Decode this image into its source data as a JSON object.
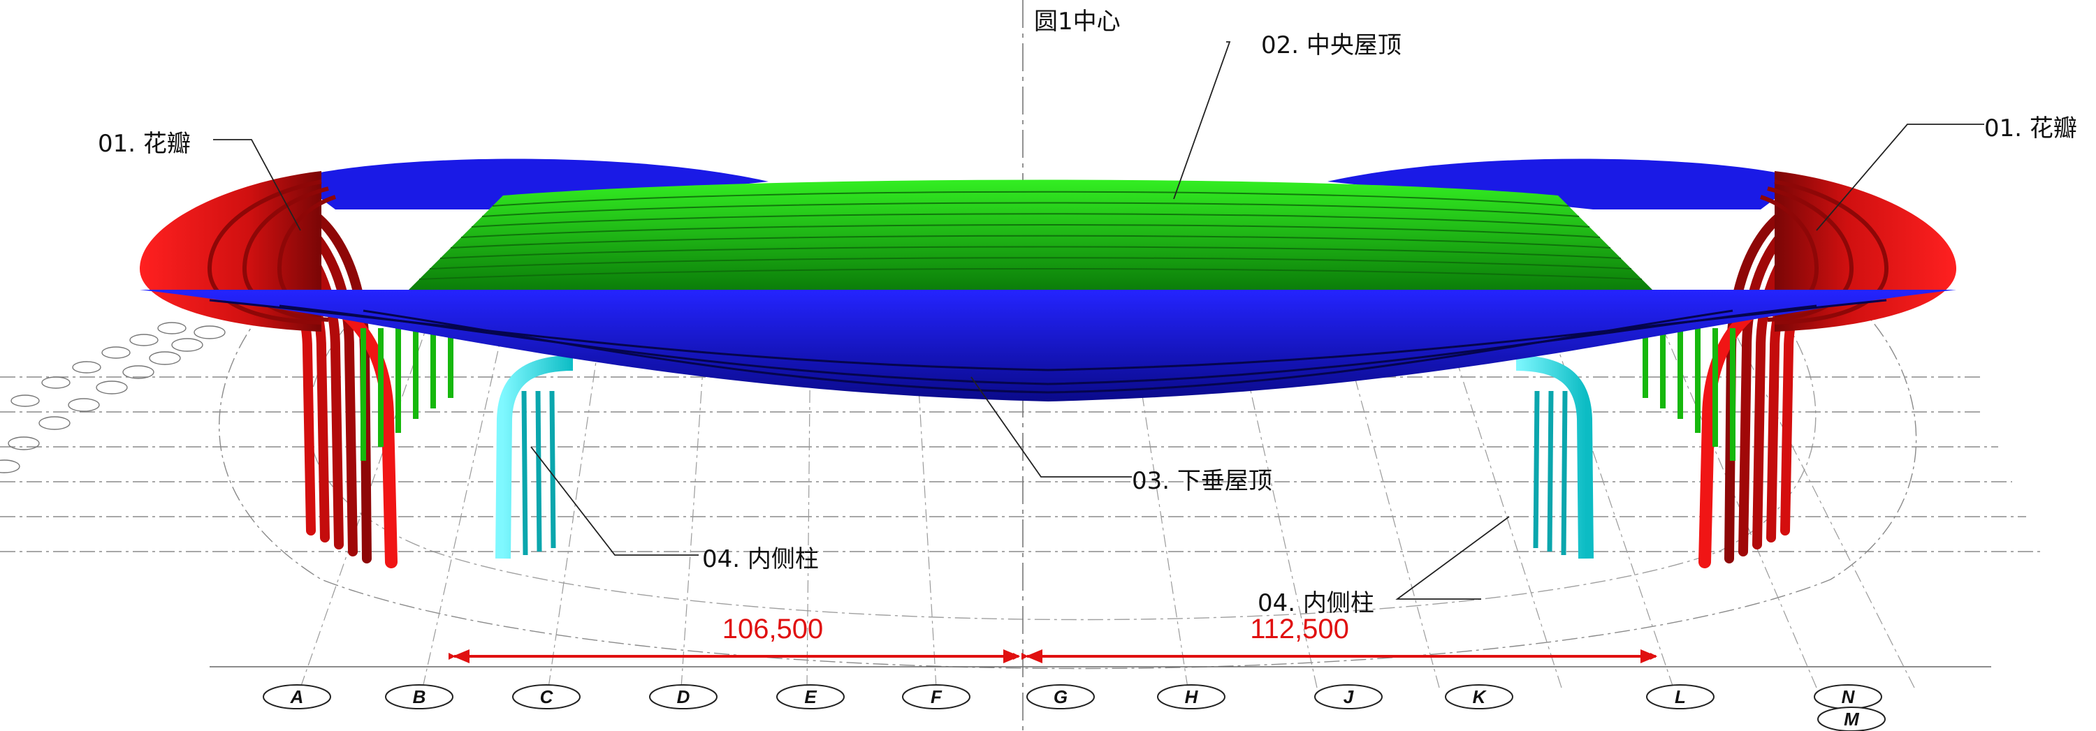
{
  "center_label": "圆1中心",
  "callouts": {
    "petal_left": "01. 花瓣",
    "petal_right": "01. 花瓣",
    "central_roof": "02. 中央屋顶",
    "hanging_roof": "03. 下垂屋顶",
    "inner_column_left": "04. 内侧柱",
    "inner_column_right": "04. 内侧柱"
  },
  "dimensions": {
    "left": "106,500",
    "right": "112,500"
  },
  "grid_axes": [
    "A",
    "B",
    "C",
    "D",
    "E",
    "F",
    "G",
    "H",
    "J",
    "K",
    "L",
    "N",
    "M"
  ],
  "colors": {
    "petal": "#ee1111",
    "central_roof": "#22dd11",
    "hanging_roof": "#1a1ae6",
    "inner_column": "#22e8ee",
    "dimension": "#e01010"
  }
}
